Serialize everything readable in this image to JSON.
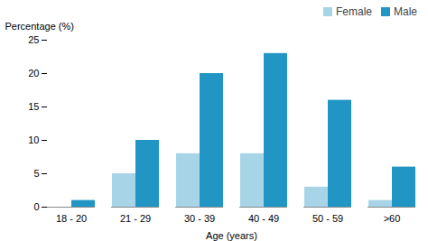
{
  "chart_data": {
    "type": "bar",
    "categories": [
      "18 - 20",
      "21 - 29",
      "30 - 39",
      "40 - 49",
      "50 - 59",
      ">60"
    ],
    "series": [
      {
        "name": "Female",
        "color": "#a8d4e8",
        "values": [
          0,
          5,
          8,
          8,
          3,
          1
        ]
      },
      {
        "name": "Male",
        "color": "#2196c4",
        "values": [
          1,
          10,
          20,
          23,
          16,
          6
        ]
      }
    ],
    "xlabel": "Age (years)",
    "ylabel": "Percentage (%)",
    "ylim": [
      0,
      25
    ],
    "yticks": [
      0,
      5,
      10,
      15,
      20,
      25
    ],
    "legend": "upper right",
    "grid": false
  }
}
